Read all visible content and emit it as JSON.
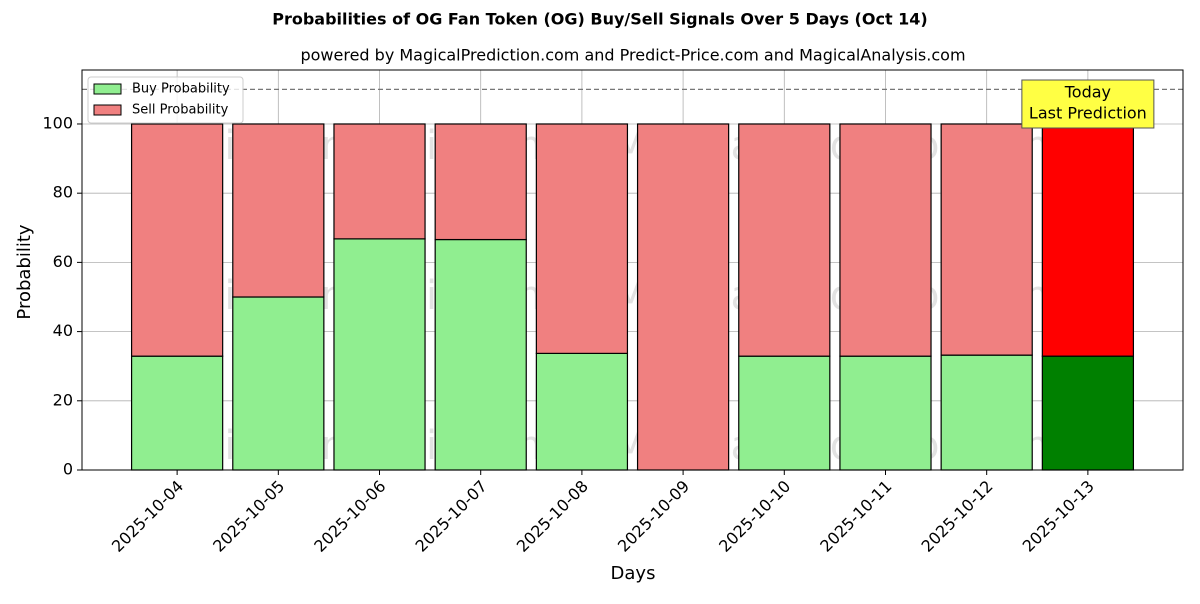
{
  "chart_data": {
    "type": "stacked_bar",
    "title": "Probabilities of OG Fan Token (OG) Buy/Sell Signals Over 5 Days (Oct 14)",
    "subtitle": "powered by MagicalPrediction.com and Predict-Price.com and MagicalAnalysis.com",
    "x_label": "Days",
    "y_label": "Probability",
    "categories": [
      "2025-10-04",
      "2025-10-05",
      "2025-10-06",
      "2025-10-07",
      "2025-10-08",
      "2025-10-09",
      "2025-10-10",
      "2025-10-11",
      "2025-10-12",
      "2025-10-13"
    ],
    "series": [
      {
        "name": "Buy Probability",
        "color": "#90ee90",
        "colors": [
          "#90ee90",
          "#90ee90",
          "#90ee90",
          "#90ee90",
          "#90ee90",
          "#90ee90",
          "#90ee90",
          "#90ee90",
          "#90ee90",
          "#008000"
        ],
        "values": [
          32.9,
          50,
          66.8,
          66.6,
          33.7,
          0,
          32.9,
          32.9,
          33.2,
          32.9
        ]
      },
      {
        "name": "Sell Probability",
        "color": "#f08080",
        "colors": [
          "#f08080",
          "#f08080",
          "#f08080",
          "#f08080",
          "#f08080",
          "#f08080",
          "#f08080",
          "#f08080",
          "#f08080",
          "#ff0000"
        ],
        "values": [
          67.1,
          50,
          33.2,
          33.4,
          66.3,
          100,
          67.1,
          67.1,
          66.8,
          67.1
        ]
      }
    ],
    "ylim": [
      0,
      115.6
    ],
    "yticks": [
      0,
      20,
      40,
      60,
      80,
      100
    ],
    "grid": true,
    "legend": "upper left",
    "reference_line": 110,
    "annotation": [
      "Today",
      "Last Prediction"
    ],
    "watermarks": [
      "MagicalAnalysis.com",
      "MagicalPrediction.com"
    ]
  }
}
